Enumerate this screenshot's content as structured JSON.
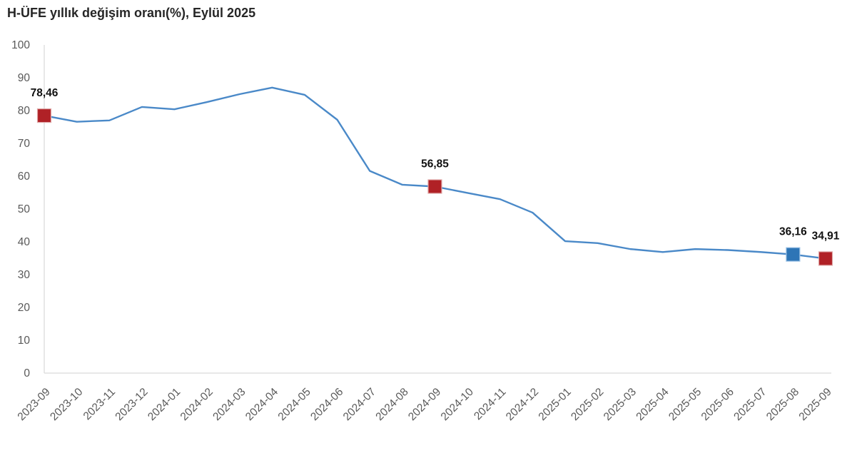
{
  "title": "H-ÜFE yıllık değişim oranı(%), Eylül 2025",
  "chart_data": {
    "type": "line",
    "title": "H-ÜFE yıllık değişim oranı(%), Eylül 2025",
    "xlabel": "",
    "ylabel": "",
    "ylim": [
      0,
      100
    ],
    "ytick_step": 10,
    "grid": false,
    "legend_position": "none",
    "x": [
      "2023-09",
      "2023-10",
      "2023-11",
      "2023-12",
      "2024-01",
      "2024-02",
      "2024-03",
      "2024-04",
      "2024-05",
      "2024-06",
      "2024-07",
      "2024-08",
      "2024-09",
      "2024-10",
      "2024-11",
      "2024-12",
      "2025-01",
      "2025-02",
      "2025-03",
      "2025-04",
      "2025-05",
      "2025-06",
      "2025-07",
      "2025-08",
      "2025-09"
    ],
    "series": [
      {
        "name": "H-ÜFE yıllık değişim oranı (%)",
        "values": [
          78.46,
          76.6,
          77.0,
          81.1,
          80.4,
          82.6,
          85.0,
          87.0,
          84.8,
          77.2,
          61.6,
          57.4,
          56.85,
          54.9,
          53.0,
          48.9,
          40.2,
          39.6,
          37.8,
          36.9,
          37.8,
          37.5,
          36.9,
          36.16,
          34.91
        ]
      }
    ],
    "markers": [
      {
        "x": "2023-09",
        "value": 78.46,
        "label": "78,46",
        "color": "#b02126",
        "border": "#dfa8a8"
      },
      {
        "x": "2024-09",
        "value": 56.85,
        "label": "56,85",
        "color": "#b02126",
        "border": "#dfa8a8"
      },
      {
        "x": "2025-08",
        "value": 36.16,
        "label": "36,16",
        "color": "#2e75b6",
        "border": "#9dc3e6"
      },
      {
        "x": "2025-09",
        "value": 34.91,
        "label": "34,91",
        "color": "#b02126",
        "border": "#dfa8a8"
      }
    ],
    "colors": {
      "line": "#4a89c8",
      "axis": "#d9d9d9",
      "tick_label": "#595959",
      "data_label": "#111111",
      "title": "#262626"
    }
  }
}
